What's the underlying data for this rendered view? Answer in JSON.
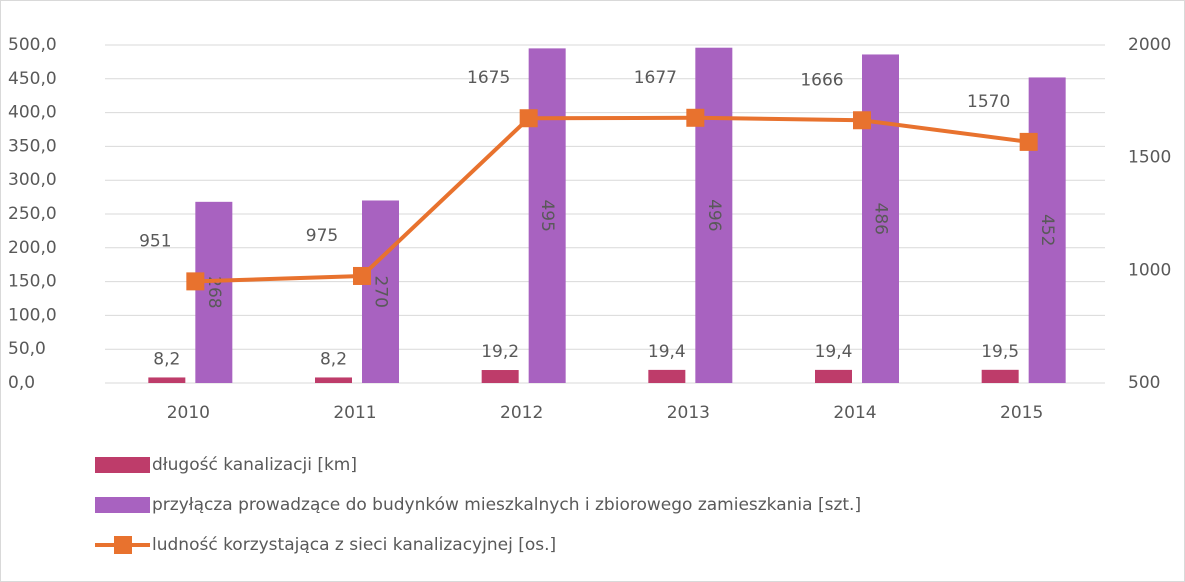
{
  "chart_data": {
    "type": "bar",
    "categories": [
      "2010",
      "2011",
      "2012",
      "2013",
      "2014",
      "2015"
    ],
    "series": [
      {
        "name": "długość kanalizacji [km]",
        "type": "bar",
        "color": "#be3c6a",
        "values": [
          8.2,
          8.2,
          19.2,
          19.4,
          19.4,
          19.5
        ],
        "value_labels": [
          "8,2",
          "8,2",
          "19,2",
          "19,4",
          "19,4",
          "19,5"
        ]
      },
      {
        "name": "przyłącza prowadzące do budynków mieszkalnych i zbiorowego zamieszkania [szt.]",
        "type": "bar",
        "color": "#a862c0",
        "values": [
          268,
          270,
          495,
          496,
          486,
          452
        ]
      },
      {
        "name": "ludność korzystająca z  sieci kanalizacyjnej [os.]",
        "type": "line",
        "axis": "y2",
        "color": "#e8722e",
        "values": [
          951,
          975,
          1675,
          1677,
          1666,
          1570
        ]
      }
    ],
    "ylim": [
      0,
      500
    ],
    "yticks": [
      {
        "value": 0,
        "label": "0,0"
      },
      {
        "value": 50,
        "label": "50,0"
      },
      {
        "value": 100,
        "label": "100,0"
      },
      {
        "value": 150,
        "label": "150,0"
      },
      {
        "value": 200,
        "label": "200,0"
      },
      {
        "value": 250,
        "label": "250,0"
      },
      {
        "value": 300,
        "label": "300,0"
      },
      {
        "value": 350,
        "label": "350,0"
      },
      {
        "value": 400,
        "label": "400,0"
      },
      {
        "value": 450,
        "label": "450,0"
      },
      {
        "value": 500,
        "label": "500,0"
      }
    ],
    "y2lim": [
      500,
      2000
    ],
    "y2ticks": [
      500,
      1000,
      1500,
      2000
    ],
    "grid": true,
    "legend": "bottom"
  }
}
